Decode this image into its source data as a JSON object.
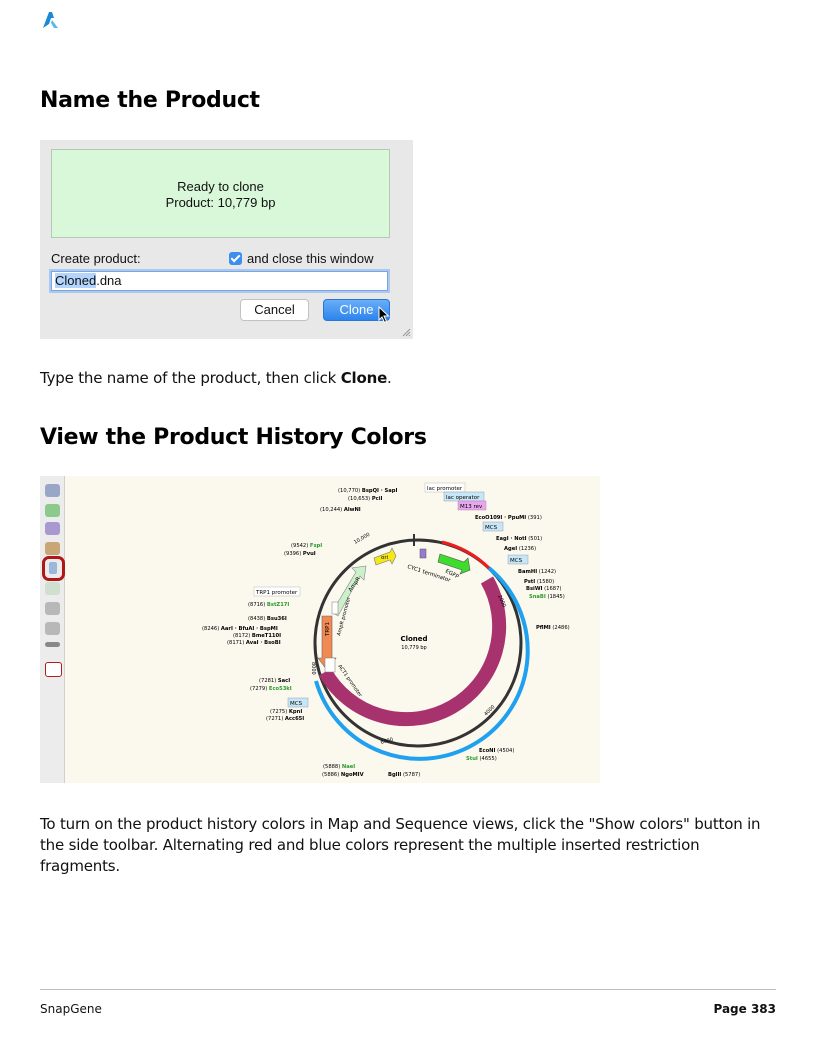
{
  "heading_name": "Name the Product",
  "dialog": {
    "status": "Ready to clone",
    "product": "Product:  10,779 bp",
    "create_label": "Create product:",
    "close_checkbox_label": "and close this window",
    "name_selected": "Cloned",
    "name_rest": ".dna",
    "cancel_label": "Cancel",
    "clone_label": "Clone"
  },
  "para1": {
    "before": "Type the name of the product, then click ",
    "bold": "Clone",
    "after": "."
  },
  "heading_view": "View the Product History Colors",
  "map": {
    "center_name": "Cloned",
    "center_size": "10,779 bp",
    "features": [
      "ori",
      "CYC1 terminator",
      "EGFP",
      "Ascl7",
      "AmpR",
      "AmpR promoter",
      "TRP1",
      "ACT1 promoter",
      "TRP1 promoter",
      "lac promoter",
      "lac operator",
      "M13 rev",
      "MCS",
      "MCS",
      "MCS"
    ],
    "ticks": [
      "10,000",
      "2000",
      "4000",
      "6000",
      "8000"
    ],
    "site_labels": [
      {
        "pos": "(10,770)",
        "name": "BspQI · SapI"
      },
      {
        "pos": "(10,653)",
        "name": "PciI"
      },
      {
        "pos": "(10,244)",
        "name": "AlwNI"
      },
      {
        "pos": "(9542)",
        "name": "FspI"
      },
      {
        "pos": "(9396)",
        "name": "PvuI"
      },
      {
        "pos": "(8716)",
        "name": "BstZ17I"
      },
      {
        "pos": "(8438)",
        "name": "Bsu36I"
      },
      {
        "pos": "(8246)",
        "name": "AarI · BfuAI · BspMI"
      },
      {
        "pos": "(8172)",
        "name": "BmeT110I"
      },
      {
        "pos": "(8171)",
        "name": "AvaI · BsoBI"
      },
      {
        "pos": "(7281)",
        "name": "SacI"
      },
      {
        "pos": "(7279)",
        "name": "Eco53kI"
      },
      {
        "pos": "(7275)",
        "name": "KpnI"
      },
      {
        "pos": "(7271)",
        "name": "Acc65I"
      },
      {
        "pos": "(5888)",
        "name": "NaeI"
      },
      {
        "pos": "(5886)",
        "name": "NgoMIV"
      },
      {
        "pos": "(5787)",
        "name": "BglII"
      },
      {
        "pos": "(391)",
        "name": "EcoO109I · PpuMI"
      },
      {
        "pos": "(501)",
        "name": "EagI · NotI"
      },
      {
        "pos": "(1236)",
        "name": "AgeI"
      },
      {
        "pos": "(1242)",
        "name": "BamHI"
      },
      {
        "pos": "(1580)",
        "name": "PstI"
      },
      {
        "pos": "(1687)",
        "name": "BsiWI"
      },
      {
        "pos": "(1845)",
        "name": "SnaBI"
      },
      {
        "pos": "(2486)",
        "name": "PflMI"
      },
      {
        "pos": "(4504)",
        "name": "EcoNI"
      },
      {
        "pos": "(4655)",
        "name": "StuI"
      }
    ]
  },
  "para2": "To turn on the product history colors in Map and Sequence views, click the \"Show colors\" button in the side toolbar. Alternating red and blue colors represent the multiple inserted restriction fragments.",
  "footer": {
    "left": "SnapGene",
    "right": "Page 383"
  },
  "colors": {
    "red_fragment": "#ee1c1c",
    "blue_fragment": "#1fa1ef",
    "backbone": "#333333",
    "orf": "#a8326e"
  }
}
